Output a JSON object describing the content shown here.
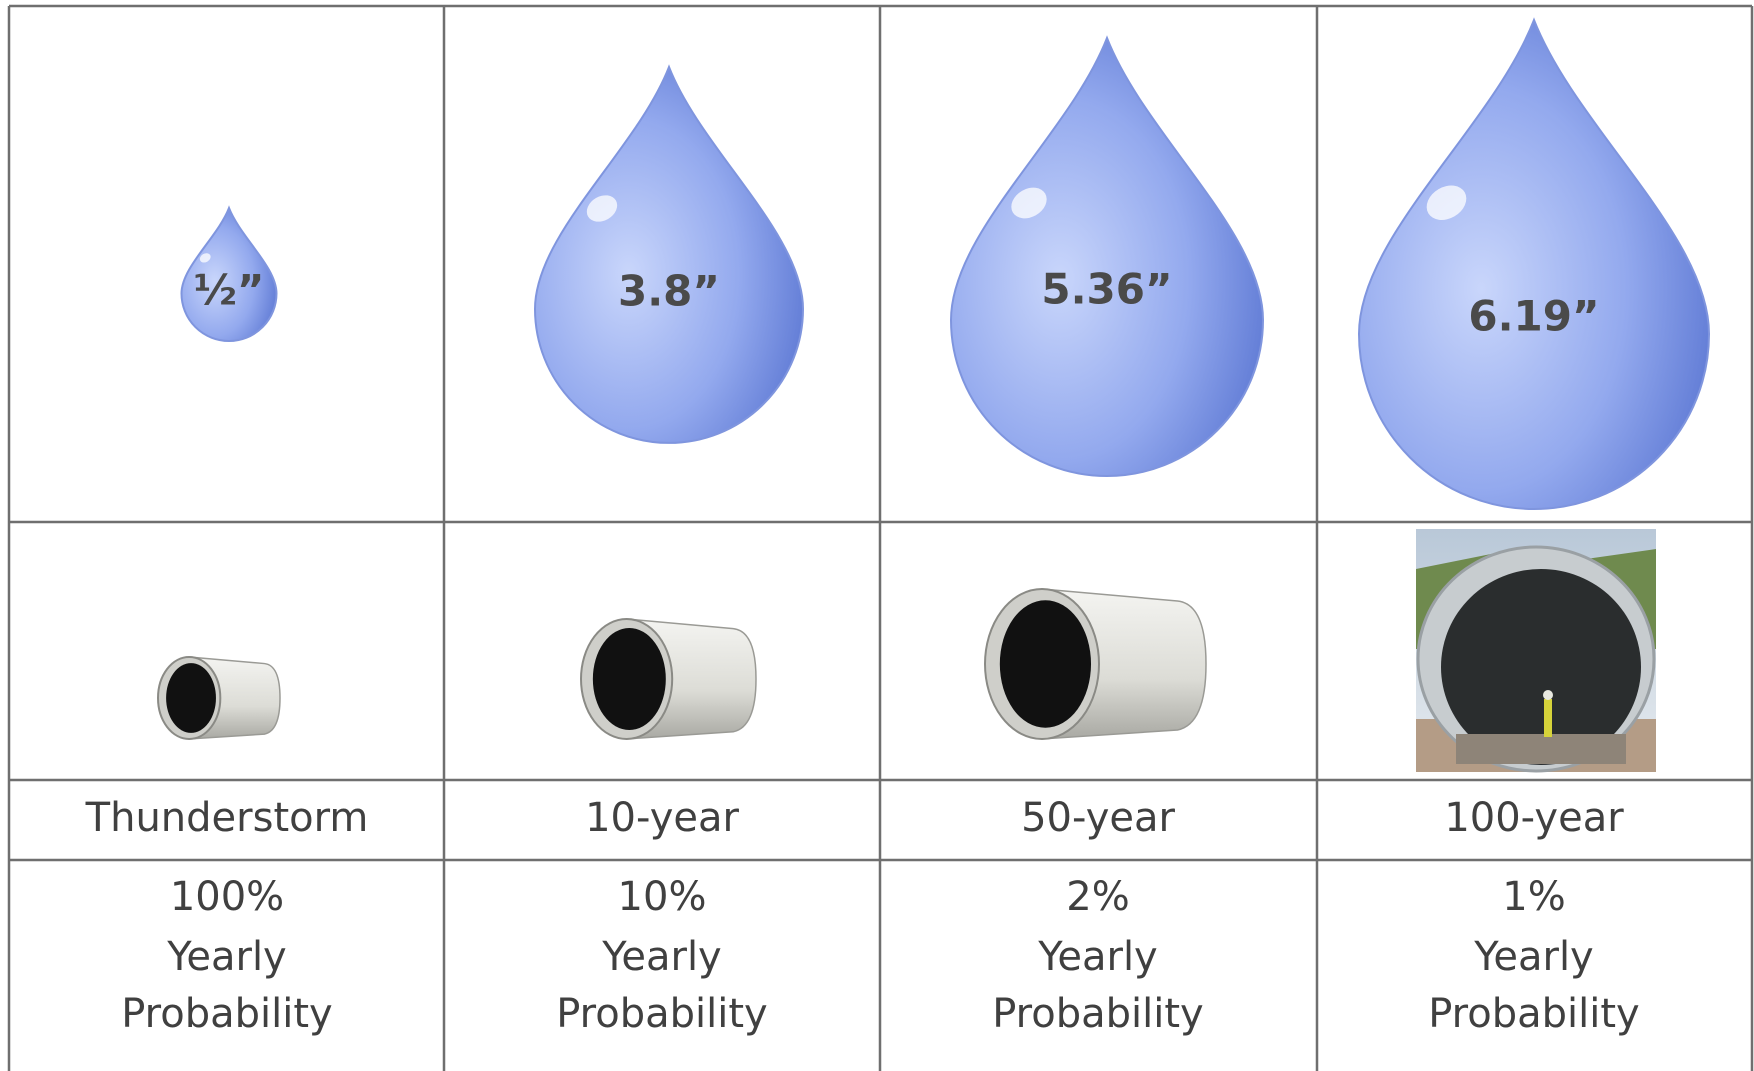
{
  "columns": [
    {
      "drop_label": "½”",
      "event": "Thunderstorm",
      "probability": [
        "100%",
        "Yearly",
        "Probability"
      ]
    },
    {
      "drop_label": "3.8”",
      "event": "10-year",
      "probability": [
        "10%",
        "Yearly",
        "Probability"
      ]
    },
    {
      "drop_label": "5.36”",
      "event": "50-year",
      "probability": [
        "2%",
        "Yearly",
        "Probability"
      ]
    },
    {
      "drop_label": "6.19”",
      "event": "100-year",
      "probability": [
        "1%",
        "Yearly",
        "Probability"
      ]
    }
  ]
}
